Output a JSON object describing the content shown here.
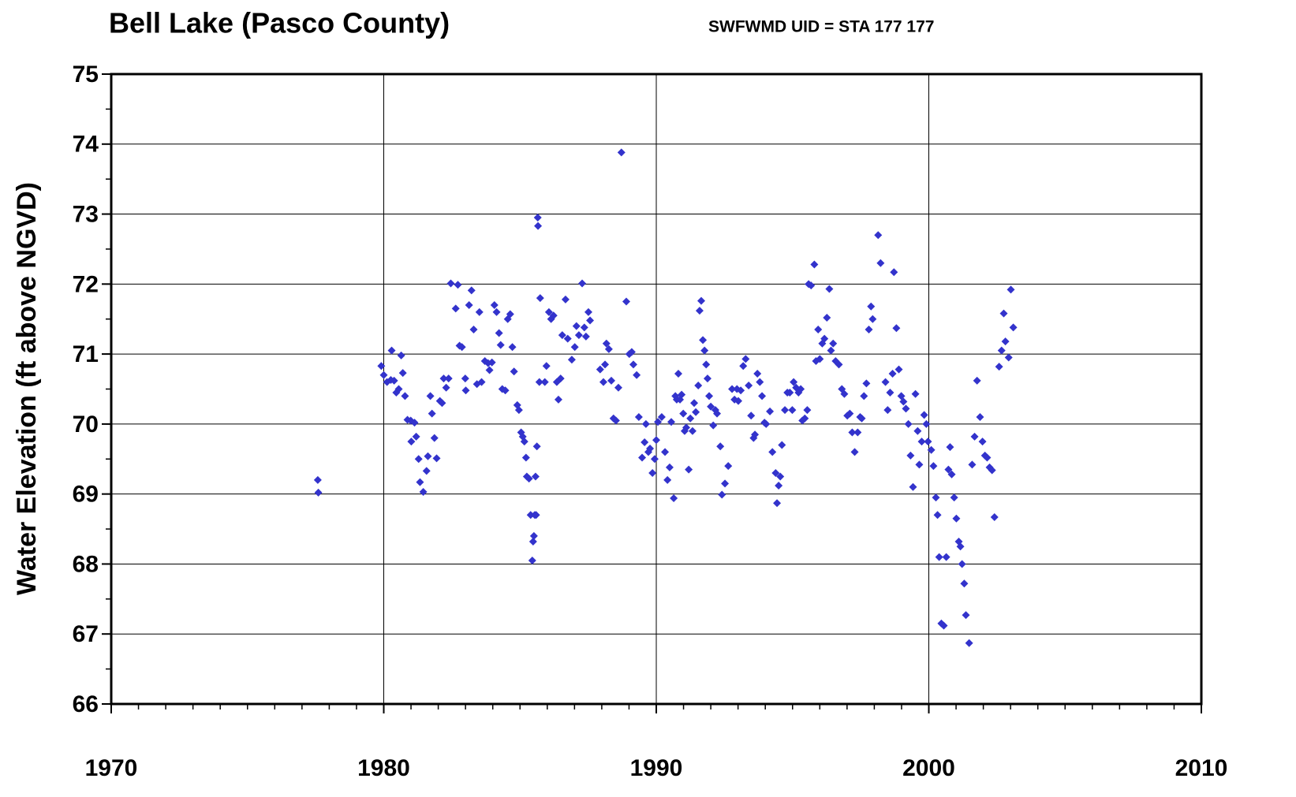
{
  "chart_data": {
    "type": "scatter",
    "title": "Bell Lake (Pasco County)",
    "subtitle": "SWFWMD UID = STA 177 177",
    "y_label": "Water Elevation (ft above NGVD)",
    "xlim": [
      1970,
      2010
    ],
    "xticks": [
      1970,
      1980,
      1990,
      2000,
      2010
    ],
    "ylim": [
      66,
      75
    ],
    "yticks": [
      66,
      67,
      68,
      69,
      70,
      71,
      72,
      73,
      74,
      75
    ],
    "minor_xtick_step": 1,
    "minor_ytick_step": 0.5,
    "grid": true,
    "series": [
      {
        "color": "#3333cc",
        "x": [
          1977.58,
          1977.6,
          1979.91,
          1980.0,
          1980.12,
          1980.26,
          1980.29,
          1980.38,
          1980.46,
          1980.55,
          1980.64,
          1980.7,
          1980.78,
          1980.87,
          1980.99,
          1981.01,
          1981.13,
          1981.19,
          1981.28,
          1981.33,
          1981.45,
          1981.57,
          1981.62,
          1981.71,
          1981.77,
          1981.86,
          1981.94,
          1982.06,
          1982.14,
          1982.2,
          1982.29,
          1982.38,
          1982.46,
          1982.64,
          1982.72,
          1982.78,
          1982.87,
          1982.99,
          1983.01,
          1983.13,
          1983.22,
          1983.3,
          1983.42,
          1983.51,
          1983.59,
          1983.71,
          1983.83,
          1983.88,
          1983.97,
          1984.06,
          1984.14,
          1984.23,
          1984.29,
          1984.35,
          1984.46,
          1984.55,
          1984.64,
          1984.72,
          1984.78,
          1984.9,
          1984.96,
          1985.04,
          1985.1,
          1985.16,
          1985.22,
          1985.25,
          1985.33,
          1985.39,
          1985.45,
          1985.48,
          1985.51,
          1985.54,
          1985.59,
          1985.57,
          1985.62,
          1985.65,
          1985.66,
          1985.74,
          1985.71,
          1985.91,
          1985.97,
          1986.06,
          1986.14,
          1986.23,
          1986.35,
          1986.41,
          1986.49,
          1986.55,
          1986.67,
          1986.75,
          1986.9,
          1987.01,
          1987.07,
          1987.16,
          1987.28,
          1987.36,
          1987.42,
          1987.51,
          1987.57,
          1987.94,
          1988.06,
          1988.12,
          1988.17,
          1988.26,
          1988.35,
          1988.43,
          1988.52,
          1988.61,
          1988.72,
          1988.9,
          1989.01,
          1989.1,
          1989.16,
          1989.28,
          1989.36,
          1989.48,
          1989.57,
          1989.62,
          1989.71,
          1989.77,
          1989.86,
          1989.94,
          1990.0,
          1990.06,
          1990.2,
          1990.32,
          1990.41,
          1990.49,
          1990.55,
          1990.64,
          1990.7,
          1990.75,
          1990.81,
          1990.87,
          1990.93,
          1990.99,
          1991.04,
          1991.1,
          1991.19,
          1991.25,
          1991.33,
          1991.39,
          1991.45,
          1991.54,
          1991.59,
          1991.65,
          1991.71,
          1991.77,
          1991.83,
          1991.88,
          1991.94,
          1992.0,
          1992.09,
          1992.17,
          1992.23,
          1992.35,
          1992.41,
          1992.52,
          1992.64,
          1992.78,
          1992.87,
          1992.96,
          1993.01,
          1993.1,
          1993.19,
          1993.28,
          1993.39,
          1993.48,
          1993.57,
          1993.62,
          1993.71,
          1993.8,
          1993.88,
          1993.97,
          1994.03,
          1994.17,
          1994.26,
          1994.38,
          1994.43,
          1994.49,
          1994.55,
          1994.61,
          1994.72,
          1994.81,
          1994.9,
          1994.99,
          1995.04,
          1995.13,
          1995.22,
          1995.3,
          1995.36,
          1995.45,
          1995.54,
          1995.59,
          1995.68,
          1995.8,
          1995.86,
          1995.94,
          1996.0,
          1996.09,
          1996.17,
          1996.26,
          1996.35,
          1996.41,
          1996.49,
          1996.58,
          1996.7,
          1996.81,
          1996.9,
          1997.01,
          1997.1,
          1997.19,
          1997.28,
          1997.39,
          1997.48,
          1997.54,
          1997.62,
          1997.71,
          1997.8,
          1997.88,
          1997.94,
          1998.14,
          1998.23,
          1998.41,
          1998.49,
          1998.58,
          1998.67,
          1998.72,
          1998.81,
          1998.9,
          1998.99,
          1999.07,
          1999.16,
          1999.25,
          1999.33,
          1999.42,
          1999.51,
          1999.59,
          1999.65,
          1999.74,
          1999.83,
          1999.91,
          1999.97,
          2000.09,
          2000.17,
          2000.26,
          2000.32,
          2000.38,
          2000.46,
          2000.55,
          2000.64,
          2000.72,
          2000.78,
          2000.84,
          2000.93,
          2001.01,
          2001.1,
          2001.16,
          2001.22,
          2001.3,
          2001.36,
          2001.48,
          2001.59,
          2001.68,
          2001.77,
          2001.88,
          2001.97,
          2002.06,
          2002.14,
          2002.23,
          2002.32,
          2002.41,
          2002.58,
          2002.67,
          2002.75,
          2002.81,
          2002.93,
          2003.01,
          2003.1
        ],
        "values": [
          69.2,
          69.02,
          70.83,
          70.7,
          70.6,
          70.63,
          71.05,
          70.62,
          70.45,
          70.5,
          70.98,
          70.73,
          70.4,
          70.06,
          70.05,
          69.75,
          70.02,
          69.82,
          69.5,
          69.17,
          69.03,
          69.33,
          69.54,
          70.4,
          70.15,
          69.8,
          69.51,
          70.33,
          70.3,
          70.65,
          70.52,
          70.65,
          72.01,
          71.65,
          71.99,
          71.12,
          71.1,
          70.65,
          70.48,
          71.7,
          71.91,
          71.35,
          70.57,
          71.6,
          70.6,
          70.9,
          70.87,
          70.77,
          70.88,
          71.7,
          71.6,
          71.3,
          71.13,
          70.5,
          70.48,
          71.5,
          71.57,
          71.1,
          70.75,
          70.27,
          70.2,
          69.88,
          69.82,
          69.75,
          69.52,
          69.25,
          69.22,
          68.7,
          68.05,
          68.32,
          68.4,
          68.7,
          68.7,
          69.25,
          69.68,
          72.95,
          72.83,
          71.8,
          70.6,
          70.6,
          70.83,
          71.6,
          71.5,
          71.55,
          70.6,
          70.35,
          70.65,
          71.27,
          71.78,
          71.22,
          70.92,
          71.1,
          71.4,
          71.27,
          72.01,
          71.38,
          71.25,
          71.6,
          71.48,
          70.78,
          70.6,
          70.85,
          71.15,
          71.07,
          70.62,
          70.08,
          70.05,
          70.52,
          73.88,
          71.75,
          71.0,
          71.03,
          70.85,
          70.7,
          70.1,
          69.52,
          69.74,
          70.0,
          69.6,
          69.65,
          69.3,
          69.5,
          69.77,
          70.03,
          70.1,
          69.6,
          69.2,
          69.38,
          70.03,
          68.94,
          70.4,
          70.35,
          70.72,
          70.35,
          70.42,
          70.15,
          69.9,
          69.95,
          69.35,
          70.08,
          69.9,
          70.3,
          70.17,
          70.55,
          71.62,
          71.76,
          71.2,
          71.05,
          70.85,
          70.65,
          70.4,
          70.25,
          69.98,
          70.2,
          70.15,
          69.68,
          68.99,
          69.15,
          69.4,
          70.5,
          70.35,
          70.5,
          70.33,
          70.48,
          70.83,
          70.93,
          70.55,
          70.12,
          69.8,
          69.85,
          70.72,
          70.6,
          70.4,
          70.02,
          70.0,
          70.18,
          69.6,
          69.3,
          68.87,
          69.12,
          69.25,
          69.7,
          70.2,
          70.45,
          70.45,
          70.2,
          70.6,
          70.52,
          70.45,
          70.5,
          70.05,
          70.08,
          70.2,
          72.0,
          71.98,
          72.28,
          70.9,
          71.35,
          70.93,
          71.15,
          71.22,
          71.52,
          71.93,
          71.05,
          71.15,
          70.9,
          70.85,
          70.5,
          70.43,
          70.12,
          70.15,
          69.88,
          69.6,
          69.88,
          70.1,
          70.08,
          70.4,
          70.58,
          71.35,
          71.68,
          71.5,
          72.7,
          72.3,
          70.6,
          70.2,
          70.45,
          70.72,
          72.17,
          71.37,
          70.78,
          70.4,
          70.32,
          70.22,
          70.0,
          69.55,
          69.1,
          70.43,
          69.9,
          69.42,
          69.75,
          70.13,
          70.0,
          69.75,
          69.63,
          69.4,
          68.95,
          68.7,
          68.1,
          67.15,
          67.12,
          68.1,
          69.35,
          69.67,
          69.28,
          68.95,
          68.65,
          68.32,
          68.25,
          68.0,
          67.72,
          67.27,
          66.87,
          69.42,
          69.82,
          70.62,
          70.1,
          69.75,
          69.55,
          69.52,
          69.38,
          69.34,
          68.67,
          70.82,
          71.05,
          71.58,
          71.18,
          70.95,
          71.92,
          71.38
        ]
      }
    ]
  }
}
